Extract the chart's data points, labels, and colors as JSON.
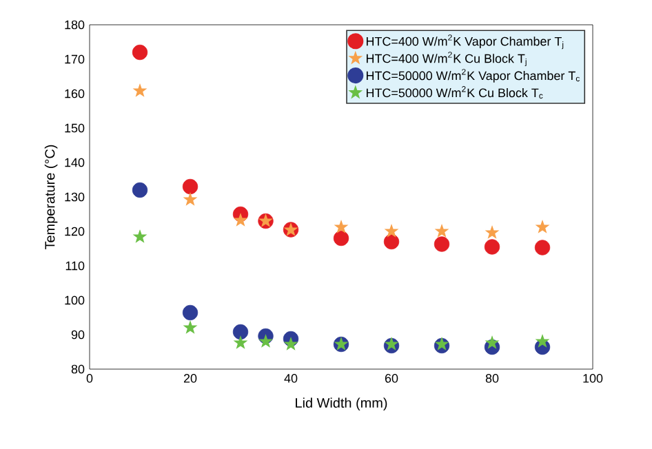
{
  "chart_data": {
    "type": "scatter",
    "xlabel": "Lid Width (mm)",
    "ylabel": "Temperature (°C)",
    "x": [
      10,
      20,
      30,
      35,
      40,
      50,
      60,
      70,
      80,
      90
    ],
    "series": [
      {
        "name": "HTC=400 W/m$^{2}$K Vapor Chamber T$_{j}$",
        "color": "#e31e24",
        "marker": "circle",
        "values": [
          172,
          133,
          125,
          123,
          120.5,
          118,
          117,
          116.3,
          115.5,
          115.3
        ]
      },
      {
        "name": "HTC=400 W/m$^{2}$K Cu Block T$_{j}$",
        "color": "#f7a04a",
        "marker": "star",
        "values": [
          160.8,
          129.2,
          123.2,
          123,
          120.4,
          121.2,
          120,
          120,
          119.6,
          121.2
        ]
      },
      {
        "name": "HTC=50000 W/m$^{2}$K Vapor Chamber T$_{c}$",
        "color": "#2e3d96",
        "marker": "circle",
        "values": [
          132,
          96.4,
          90.8,
          89.6,
          88.8,
          87.2,
          86.8,
          86.8,
          86.4,
          86.4
        ]
      },
      {
        "name": "HTC=50000 W/m$^{2}$K Cu Block T$_{c}$",
        "color": "#6abf45",
        "marker": "star",
        "values": [
          118.4,
          92,
          87.6,
          88,
          87.2,
          87.2,
          87.2,
          87.2,
          87.6,
          88
        ]
      }
    ],
    "xlim": [
      0,
      100
    ],
    "xticks": [
      0,
      20,
      40,
      60,
      80,
      100
    ],
    "ylim": [
      80,
      180
    ],
    "yticks": [
      80,
      90,
      100,
      110,
      120,
      130,
      140,
      150,
      160,
      170,
      180
    ],
    "legend": "top right",
    "grid": false
  }
}
